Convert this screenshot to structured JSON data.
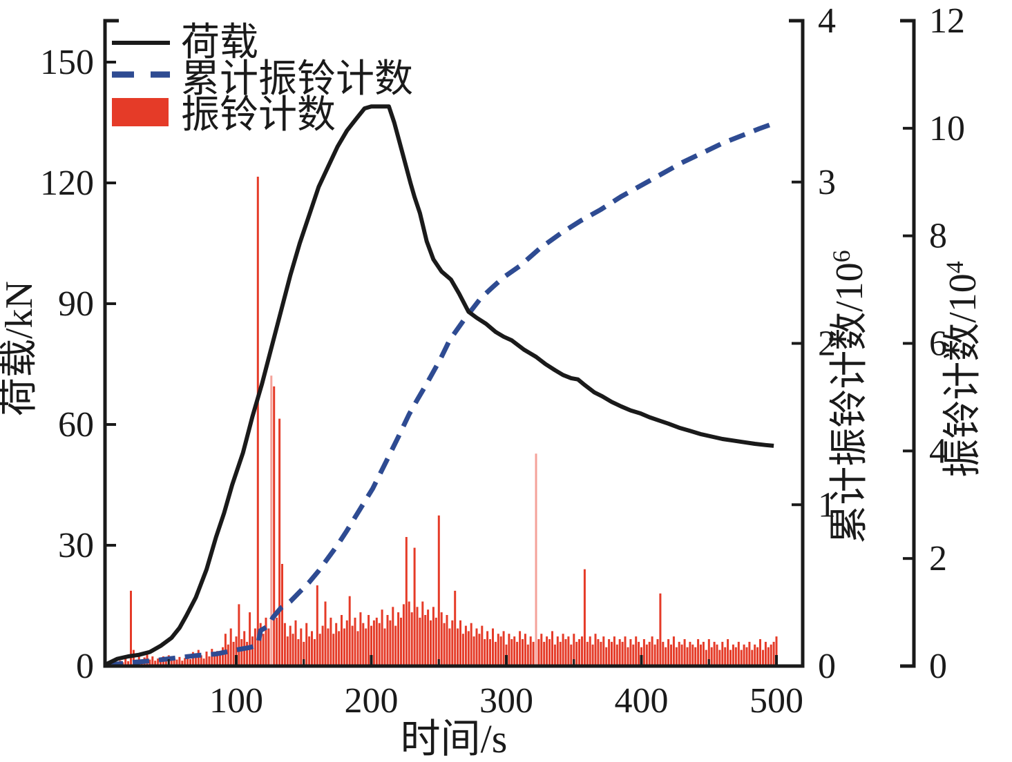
{
  "figure": {
    "background": "#ffffff",
    "plot_border_color": "#1a1a1a"
  },
  "legend": {
    "items": [
      {
        "label": "荷载",
        "type": "solid-line",
        "color": "#1a1a1a"
      },
      {
        "label": "累计振铃计数",
        "type": "dashed-line",
        "color": "#2e4b92"
      },
      {
        "label": "振铃计数",
        "type": "filled-rect",
        "color": "#e53b28"
      }
    ]
  },
  "axes": {
    "x": {
      "title": "时间/s",
      "ticks": [
        100,
        200,
        300,
        400,
        500
      ],
      "minor_ticks": [
        50,
        150,
        250,
        350,
        450
      ],
      "range": [
        0,
        520
      ]
    },
    "y_left": {
      "title": "荷载/kN",
      "ticks": [
        0,
        30,
        60,
        90,
        120,
        150
      ],
      "range": [
        0,
        160
      ]
    },
    "y_right_cumulative": {
      "title_base": "累计振铃计数/10",
      "title_exp": "6",
      "ticks": [
        0,
        1,
        2,
        3,
        4
      ],
      "range": [
        0,
        4
      ]
    },
    "y_right_count": {
      "title_base": "振铃计数/10",
      "title_exp": "4",
      "ticks": [
        0,
        2,
        4,
        6,
        8,
        10,
        12
      ],
      "range": [
        0,
        12
      ]
    }
  },
  "chart_data": {
    "type": "combo",
    "x_unit": "s",
    "grid": false,
    "legend_position": "upper-left-inside",
    "series": [
      {
        "name": "荷载",
        "type": "line",
        "style": "solid",
        "axis": "y_left_kN",
        "color": "#1a1a1a",
        "points": [
          [
            4,
            0.5
          ],
          [
            12,
            1.8
          ],
          [
            20,
            2.4
          ],
          [
            28,
            2.8
          ],
          [
            36,
            3.5
          ],
          [
            44,
            5
          ],
          [
            52,
            7
          ],
          [
            58,
            9.5
          ],
          [
            63,
            12.5
          ],
          [
            70,
            17
          ],
          [
            78,
            24
          ],
          [
            85,
            32
          ],
          [
            91,
            38
          ],
          [
            97,
            45
          ],
          [
            105,
            53
          ],
          [
            112,
            62
          ],
          [
            119,
            70
          ],
          [
            126,
            79
          ],
          [
            133,
            88
          ],
          [
            140,
            97
          ],
          [
            147,
            105
          ],
          [
            154,
            112
          ],
          [
            161,
            119
          ],
          [
            168,
            124
          ],
          [
            175,
            129
          ],
          [
            182,
            133
          ],
          [
            189,
            136
          ],
          [
            195,
            138.5
          ],
          [
            200,
            139
          ],
          [
            213,
            139
          ],
          [
            217,
            135
          ],
          [
            221,
            130
          ],
          [
            225,
            125
          ],
          [
            229,
            120
          ],
          [
            232,
            116.5
          ],
          [
            236,
            112.5
          ],
          [
            241,
            105.5
          ],
          [
            246,
            101
          ],
          [
            252,
            98
          ],
          [
            259,
            96
          ],
          [
            265,
            92.5
          ],
          [
            272,
            88
          ],
          [
            278,
            86.5
          ],
          [
            285,
            85
          ],
          [
            292,
            83
          ],
          [
            298,
            81.8
          ],
          [
            304,
            80.9
          ],
          [
            313,
            78.6
          ],
          [
            322,
            76.8
          ],
          [
            329,
            75
          ],
          [
            336,
            73.5
          ],
          [
            342,
            72.3
          ],
          [
            348,
            71.5
          ],
          [
            353,
            71.2
          ],
          [
            358,
            69.8
          ],
          [
            365,
            68
          ],
          [
            371,
            67
          ],
          [
            378,
            65.6
          ],
          [
            385,
            64.5
          ],
          [
            392,
            63.5
          ],
          [
            399,
            62.8
          ],
          [
            406,
            61.8
          ],
          [
            413,
            61
          ],
          [
            420,
            60.2
          ],
          [
            428,
            59.2
          ],
          [
            436,
            58.4
          ],
          [
            444,
            57.6
          ],
          [
            452,
            57
          ],
          [
            460,
            56.4
          ],
          [
            468,
            56
          ],
          [
            476,
            55.6
          ],
          [
            484,
            55.2
          ],
          [
            492,
            54.9
          ],
          [
            498,
            54.7
          ]
        ]
      },
      {
        "name": "累计振铃计数",
        "type": "line",
        "style": "dashed",
        "axis": "y_right_cumulative_1e6",
        "color": "#2e4b92",
        "points": [
          [
            4,
            0.005
          ],
          [
            20,
            0.02
          ],
          [
            40,
            0.035
          ],
          [
            55,
            0.05
          ],
          [
            70,
            0.065
          ],
          [
            85,
            0.075
          ],
          [
            100,
            0.1
          ],
          [
            110,
            0.115
          ],
          [
            116,
            0.13
          ],
          [
            118,
            0.22
          ],
          [
            124,
            0.25
          ],
          [
            127,
            0.3
          ],
          [
            133,
            0.36
          ],
          [
            140,
            0.4
          ],
          [
            147,
            0.46
          ],
          [
            154,
            0.52
          ],
          [
            161,
            0.59
          ],
          [
            168,
            0.67
          ],
          [
            175,
            0.75
          ],
          [
            182,
            0.84
          ],
          [
            190,
            0.95
          ],
          [
            201,
            1.1
          ],
          [
            210,
            1.25
          ],
          [
            220,
            1.42
          ],
          [
            228,
            1.56
          ],
          [
            234,
            1.65
          ],
          [
            241,
            1.75
          ],
          [
            251,
            1.9
          ],
          [
            258,
            2.02
          ],
          [
            269,
            2.15
          ],
          [
            281,
            2.28
          ],
          [
            290,
            2.35
          ],
          [
            298,
            2.41
          ],
          [
            310,
            2.48
          ],
          [
            325,
            2.59
          ],
          [
            340,
            2.68
          ],
          [
            355,
            2.76
          ],
          [
            370,
            2.83
          ],
          [
            385,
            2.91
          ],
          [
            400,
            2.98
          ],
          [
            415,
            3.05
          ],
          [
            430,
            3.12
          ],
          [
            445,
            3.18
          ],
          [
            460,
            3.24
          ],
          [
            475,
            3.29
          ],
          [
            487,
            3.33
          ],
          [
            497,
            3.36
          ]
        ]
      },
      {
        "name": "振铃计数",
        "type": "bar",
        "axis": "y_right_count_1e4",
        "color": "#e53b28",
        "light_color": "#f4a29a",
        "t_start": 6,
        "t_step": 2,
        "light_indices": [
          60,
          158
        ],
        "values": [
          0.05,
          0.08,
          0.12,
          0.06,
          0.1,
          0.07,
          0.14,
          0.09,
          1.4,
          0.3,
          0.12,
          0.2,
          0.1,
          0.16,
          0.22,
          0.12,
          0.18,
          0.1,
          0.14,
          0.1,
          0.18,
          0.12,
          0.2,
          0.1,
          0.15,
          0.12,
          0.17,
          0.1,
          0.15,
          0.22,
          0.13,
          0.26,
          0.17,
          0.3,
          0.2,
          0.14,
          0.27,
          0.18,
          0.32,
          0.22,
          0.28,
          0.2,
          0.35,
          0.6,
          0.4,
          0.7,
          0.45,
          0.55,
          1.15,
          0.5,
          0.65,
          0.45,
          1.0,
          0.55,
          0.7,
          9.1,
          0.8,
          0.6,
          0.9,
          0.7,
          5.4,
          5.2,
          0.9,
          4.6,
          1.9,
          0.8,
          0.55,
          0.75,
          0.6,
          0.85,
          0.5,
          0.7,
          0.45,
          0.8,
          0.55,
          0.65,
          0.5,
          1.5,
          0.6,
          0.75,
          1.2,
          0.7,
          0.9,
          0.6,
          0.8,
          0.65,
          0.95,
          0.7,
          0.85,
          1.3,
          0.75,
          0.9,
          0.65,
          1.0,
          0.8,
          0.7,
          0.95,
          0.75,
          0.85,
          0.9,
          0.8,
          1.05,
          0.7,
          0.95,
          0.85,
          1.1,
          0.75,
          1.0,
          0.9,
          1.15,
          2.4,
          1.2,
          1.0,
          2.2,
          1.1,
          0.9,
          1.2,
          0.95,
          1.05,
          0.85,
          1.1,
          0.9,
          2.8,
          1.0,
          0.8,
          0.95,
          0.7,
          0.85,
          1.4,
          0.7,
          0.85,
          0.6,
          0.75,
          0.65,
          0.8,
          0.55,
          0.7,
          0.6,
          0.75,
          0.5,
          0.65,
          0.5,
          0.7,
          0.45,
          0.6,
          0.55,
          0.65,
          0.4,
          0.6,
          0.5,
          0.55,
          0.45,
          0.65,
          0.5,
          0.6,
          0.4,
          0.55,
          0.45,
          3.95,
          0.5,
          0.6,
          0.45,
          0.55,
          0.5,
          0.65,
          0.4,
          0.55,
          0.45,
          0.6,
          0.5,
          0.55,
          0.4,
          0.6,
          0.45,
          0.5,
          0.55,
          1.8,
          0.45,
          0.55,
          0.4,
          0.6,
          0.5,
          0.45,
          0.55,
          0.35,
          0.5,
          0.45,
          0.55,
          0.4,
          0.5,
          0.45,
          0.55,
          0.35,
          0.5,
          0.4,
          0.55,
          0.45,
          0.35,
          0.5,
          0.4,
          0.45,
          0.55,
          0.4,
          0.5,
          1.35,
          0.45,
          0.35,
          0.5,
          0.4,
          0.55,
          0.35,
          0.45,
          0.4,
          0.5,
          0.35,
          0.45,
          0.4,
          0.35,
          0.5,
          0.4,
          0.45,
          0.3,
          0.5,
          0.35,
          0.45,
          0.4,
          0.3,
          0.45,
          0.35,
          0.5,
          0.3,
          0.4,
          0.35,
          0.45,
          0.3,
          0.4,
          0.35,
          0.45,
          0.3,
          0.4,
          0.35,
          0.5,
          0.3,
          0.45,
          0.35,
          0.4,
          0.45,
          0.55
        ]
      }
    ]
  }
}
